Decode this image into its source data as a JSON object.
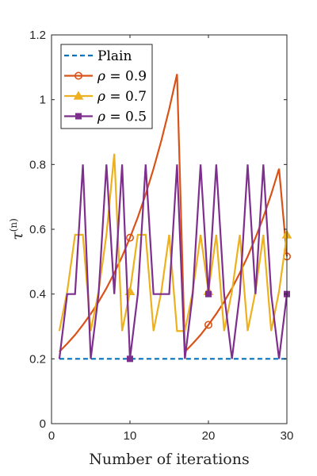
{
  "chart_data": {
    "type": "line",
    "xlabel": "Number of iterations",
    "ylabel_math": {
      "base": "τ",
      "sup": "(n)"
    },
    "xlim": [
      0,
      30
    ],
    "ylim": [
      0,
      1.2
    ],
    "xticks": [
      0,
      10,
      20,
      30
    ],
    "yticks": [
      0,
      0.2,
      0.4,
      0.6,
      0.8,
      1,
      1.2
    ],
    "ytick_labels": [
      "0",
      "0.2",
      "0.4",
      "0.6",
      "0.8",
      "1",
      "1.2"
    ],
    "grid": false,
    "legend_position": "top-left",
    "series": [
      {
        "name": "Plain",
        "color": "#0072BD",
        "style": "dashed",
        "marker": "none",
        "x": [
          1,
          30
        ],
        "y": [
          0.2,
          0.2
        ]
      },
      {
        "name": "ρ = 0.9",
        "legend": {
          "sym": "ρ",
          "rest": " = 0.9"
        },
        "color": "#D95319",
        "style": "solid",
        "marker": "circle",
        "marker_x": [
          10,
          20,
          30
        ],
        "x": [
          1,
          2,
          3,
          4,
          5,
          6,
          7,
          8,
          9,
          10,
          11,
          12,
          13,
          14,
          15,
          16,
          17,
          18,
          19,
          20,
          21,
          22,
          23,
          24,
          25,
          26,
          27,
          28,
          29,
          30
        ],
        "y": [
          0.222,
          0.247,
          0.274,
          0.305,
          0.339,
          0.376,
          0.418,
          0.465,
          0.516,
          0.574,
          0.637,
          0.708,
          0.787,
          0.874,
          0.971,
          1.079,
          0.222,
          0.247,
          0.274,
          0.305,
          0.339,
          0.376,
          0.418,
          0.465,
          0.516,
          0.574,
          0.637,
          0.708,
          0.787,
          0.516
        ]
      },
      {
        "name": "ρ = 0.7",
        "legend": {
          "sym": "ρ",
          "rest": " = 0.7"
        },
        "color": "#EDB120",
        "style": "solid",
        "marker": "triangle",
        "marker_x": [
          10,
          20,
          30
        ],
        "x": [
          1,
          2,
          3,
          4,
          5,
          6,
          7,
          8,
          9,
          10,
          11,
          12,
          13,
          14,
          15,
          16,
          17,
          18,
          19,
          20,
          21,
          22,
          23,
          24,
          25,
          26,
          27,
          28,
          29,
          30
        ],
        "y": [
          0.286,
          0.408,
          0.583,
          0.583,
          0.286,
          0.408,
          0.583,
          0.833,
          0.286,
          0.408,
          0.583,
          0.583,
          0.286,
          0.408,
          0.583,
          0.286,
          0.286,
          0.408,
          0.583,
          0.408,
          0.583,
          0.286,
          0.408,
          0.583,
          0.286,
          0.408,
          0.583,
          0.286,
          0.408,
          0.583
        ]
      },
      {
        "name": "ρ = 0.5",
        "legend": {
          "sym": "ρ",
          "rest": " = 0.5"
        },
        "color": "#7E2F8E",
        "style": "solid",
        "marker": "square",
        "marker_x": [
          10,
          20,
          30
        ],
        "x": [
          1,
          2,
          3,
          4,
          5,
          6,
          7,
          8,
          9,
          10,
          11,
          12,
          13,
          14,
          15,
          16,
          17,
          18,
          19,
          20,
          21,
          22,
          23,
          24,
          25,
          26,
          27,
          28,
          29,
          30
        ],
        "y": [
          0.2,
          0.4,
          0.4,
          0.8,
          0.2,
          0.4,
          0.8,
          0.4,
          0.8,
          0.2,
          0.4,
          0.8,
          0.4,
          0.4,
          0.4,
          0.8,
          0.2,
          0.4,
          0.8,
          0.4,
          0.8,
          0.4,
          0.2,
          0.4,
          0.8,
          0.4,
          0.8,
          0.4,
          0.2,
          0.4
        ]
      }
    ]
  }
}
